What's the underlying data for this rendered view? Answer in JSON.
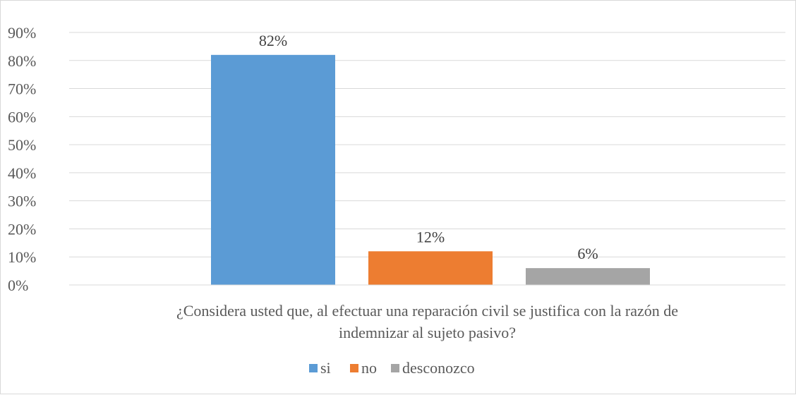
{
  "chart_data": {
    "type": "bar",
    "category": "¿Considera usted que, al efectuar una reparación civil se justifica con la razón de indemnizar al sujeto pasivo?",
    "category_lines": [
      "¿Considera usted que, al efectuar una reparación civil se justifica con la razón de",
      "indemnizar al sujeto pasivo?"
    ],
    "series": [
      {
        "name": "si",
        "value": 82,
        "label": "82%",
        "color": "#5b9bd5"
      },
      {
        "name": "no",
        "value": 12,
        "label": "12%",
        "color": "#ed7d31"
      },
      {
        "name": "desconozco",
        "value": 6,
        "label": "6%",
        "color": "#a5a5a5"
      }
    ],
    "y_ticks": [
      "0%",
      "10%",
      "20%",
      "30%",
      "40%",
      "50%",
      "60%",
      "70%",
      "80%",
      "90%"
    ],
    "ylim": [
      0,
      90
    ],
    "grid": true,
    "legend_position": "bottom"
  }
}
